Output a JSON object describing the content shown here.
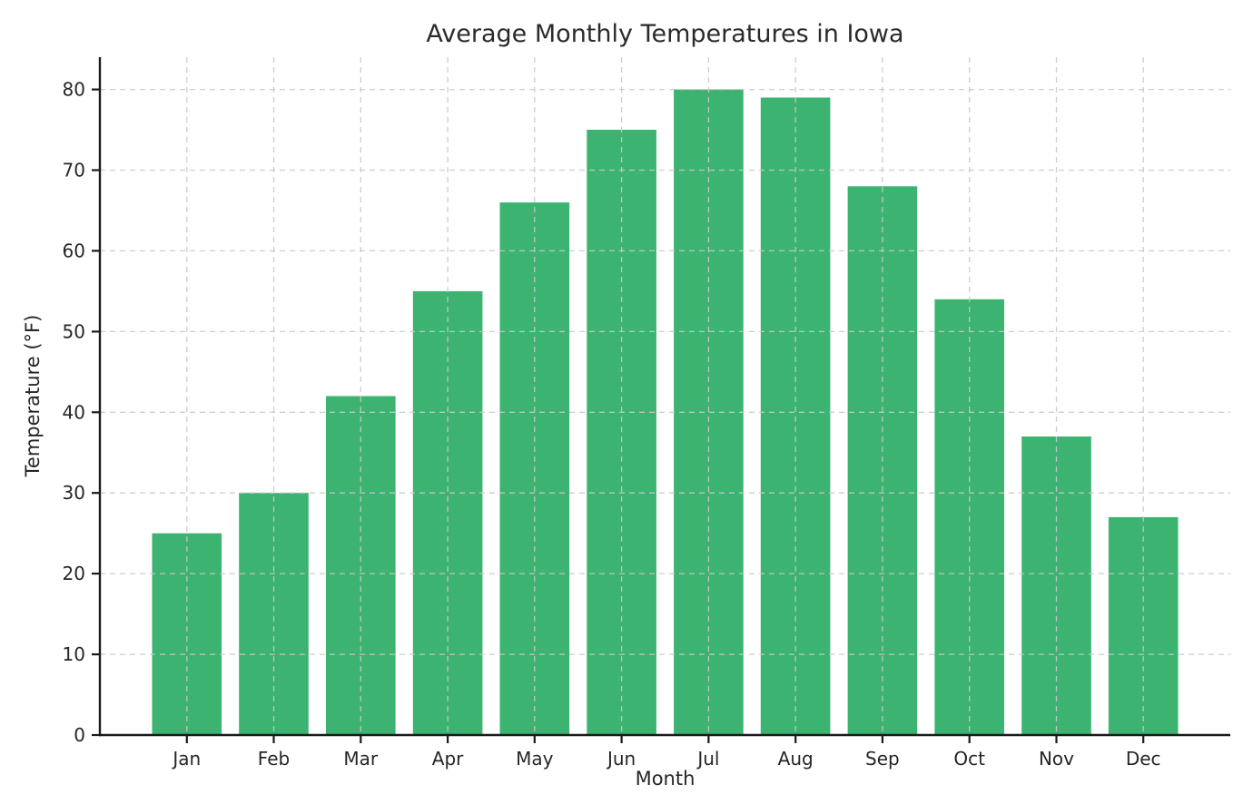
{
  "chart_data": {
    "type": "bar",
    "title": "Average Monthly Temperatures in Iowa",
    "xlabel": "Month",
    "ylabel": "Temperature (°F)",
    "categories": [
      "Jan",
      "Feb",
      "Mar",
      "Apr",
      "May",
      "Jun",
      "Jul",
      "Aug",
      "Sep",
      "Oct",
      "Nov",
      "Dec"
    ],
    "values": [
      25,
      30,
      42,
      55,
      66,
      75,
      80,
      79,
      68,
      54,
      37,
      27
    ],
    "ylim": [
      0,
      84
    ],
    "yticks": [
      0,
      10,
      20,
      30,
      40,
      50,
      60,
      70,
      80
    ],
    "grid": true,
    "grid_style": "dashed",
    "grid_on_top": true,
    "legend": null,
    "bar_color": "#3cb371",
    "grid_color": "#c9c9c9",
    "axis_color": "#1a1a1a",
    "text_color": "#262626",
    "background": "#ffffff"
  }
}
